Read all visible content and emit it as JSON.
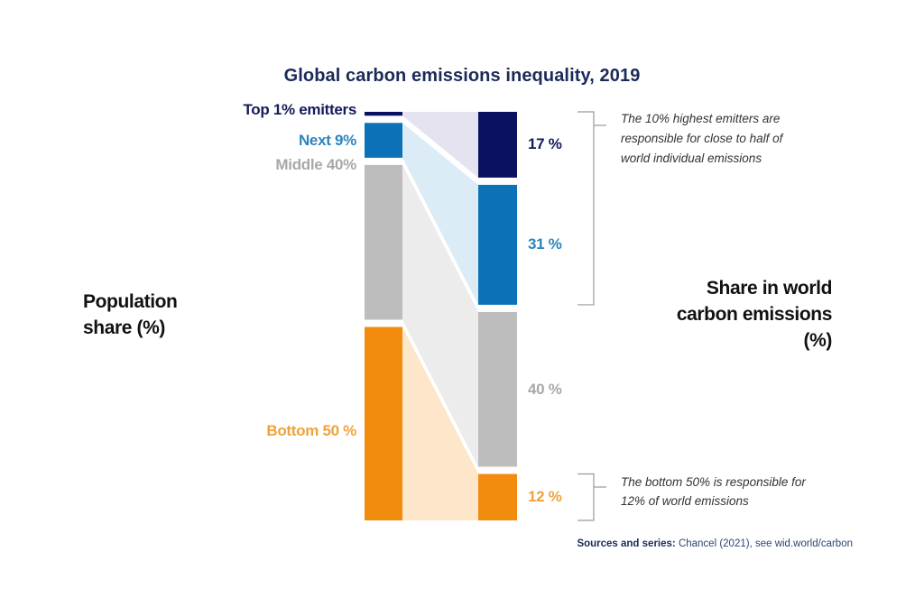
{
  "chart_data": {
    "type": "bar",
    "subtype": "stacked-comparison",
    "title": "Global carbon emissions inequality, 2019",
    "xlabel": "Population share (%)",
    "ylabel": "Share in world carbon emissions (%)",
    "categories": [
      "Top 1% emitters",
      "Next 9%",
      "Middle 40%",
      "Bottom 50%"
    ],
    "series": [
      {
        "name": "Population share (%)",
        "values": [
          1,
          9,
          40,
          50
        ]
      },
      {
        "name": "Share in world carbon emissions (%)",
        "values": [
          17,
          31,
          40,
          12
        ]
      }
    ],
    "left_labels": [
      "Top 1% emitters",
      "Next 9%",
      "Middle 40%",
      "Bottom 50 %"
    ],
    "right_labels": [
      "17 %",
      "31 %",
      "40 %",
      "12 %"
    ],
    "colors": {
      "bars": [
        "#0b1060",
        "#0c72b8",
        "#bdbdbd",
        "#f28c0f"
      ],
      "bands": [
        "#e4e3ef",
        "#dcecf7",
        "#ececec",
        "#fde6c9"
      ],
      "label_text": [
        "#151c5c",
        "#2c85bd",
        "#a8a8a8",
        "#f0a23a"
      ]
    },
    "annotations": [
      {
        "target": "top 10%",
        "lines": [
          "The 10% highest emitters are",
          "responsible for close to half of",
          "world individual emissions"
        ]
      },
      {
        "target": "bottom 50%",
        "lines": [
          "The bottom 50% is responsible for",
          "12% of world emissions"
        ]
      }
    ],
    "axis_labels": {
      "left": [
        "Population",
        "share (%)"
      ],
      "right": [
        "Share in world",
        "carbon emissions",
        "(%)"
      ]
    },
    "ylim": [
      0,
      100
    ],
    "grid": false,
    "legend": "none"
  },
  "source": {
    "prefix": "Sources and series:",
    "text": " Chancel (2021), see wid.world/carbon"
  }
}
